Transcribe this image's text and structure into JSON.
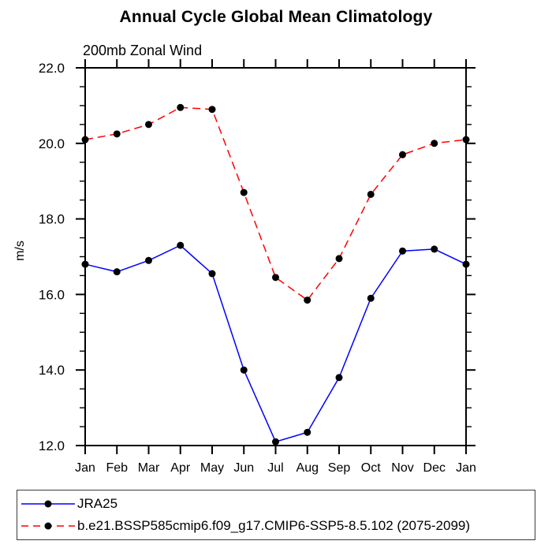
{
  "title": "Annual Cycle Global Mean Climatology",
  "subtitle": "200mb Zonal Wind",
  "chart_data": {
    "type": "line",
    "categories": [
      "Jan",
      "Feb",
      "Mar",
      "Apr",
      "May",
      "Jun",
      "Jul",
      "Aug",
      "Sep",
      "Oct",
      "Nov",
      "Dec",
      "Jan"
    ],
    "series": [
      {
        "name": "JRA25",
        "color": "#0000ff",
        "line_style": "solid",
        "marker": "filled-circle",
        "marker_color": "#000000",
        "values": [
          16.8,
          16.6,
          16.9,
          17.3,
          16.55,
          14.0,
          12.1,
          12.35,
          13.8,
          15.9,
          17.15,
          17.2,
          16.8
        ]
      },
      {
        "name": "b.e21.BSSP585cmip6.f09_g17.CMIP6-SSP5-8.5.102 (2075-2099)",
        "color": "#ff0000",
        "line_style": "dashed",
        "marker": "filled-circle",
        "marker_color": "#000000",
        "values": [
          20.1,
          20.25,
          20.5,
          20.95,
          20.9,
          18.7,
          16.45,
          15.85,
          16.95,
          18.65,
          19.7,
          20.0,
          20.1
        ]
      }
    ],
    "xlabel": "",
    "ylabel": "m/s",
    "ylim": [
      12.0,
      22.0
    ],
    "ytick_step": 2.0,
    "yminor_step": 0.5,
    "ytick_labels": [
      "12.0",
      "14.0",
      "16.0",
      "18.0",
      "20.0",
      "22.0"
    ],
    "grid": false,
    "legend_position": "bottom-left-box",
    "axis_color": "#000000",
    "background_color": "#ffffff"
  }
}
